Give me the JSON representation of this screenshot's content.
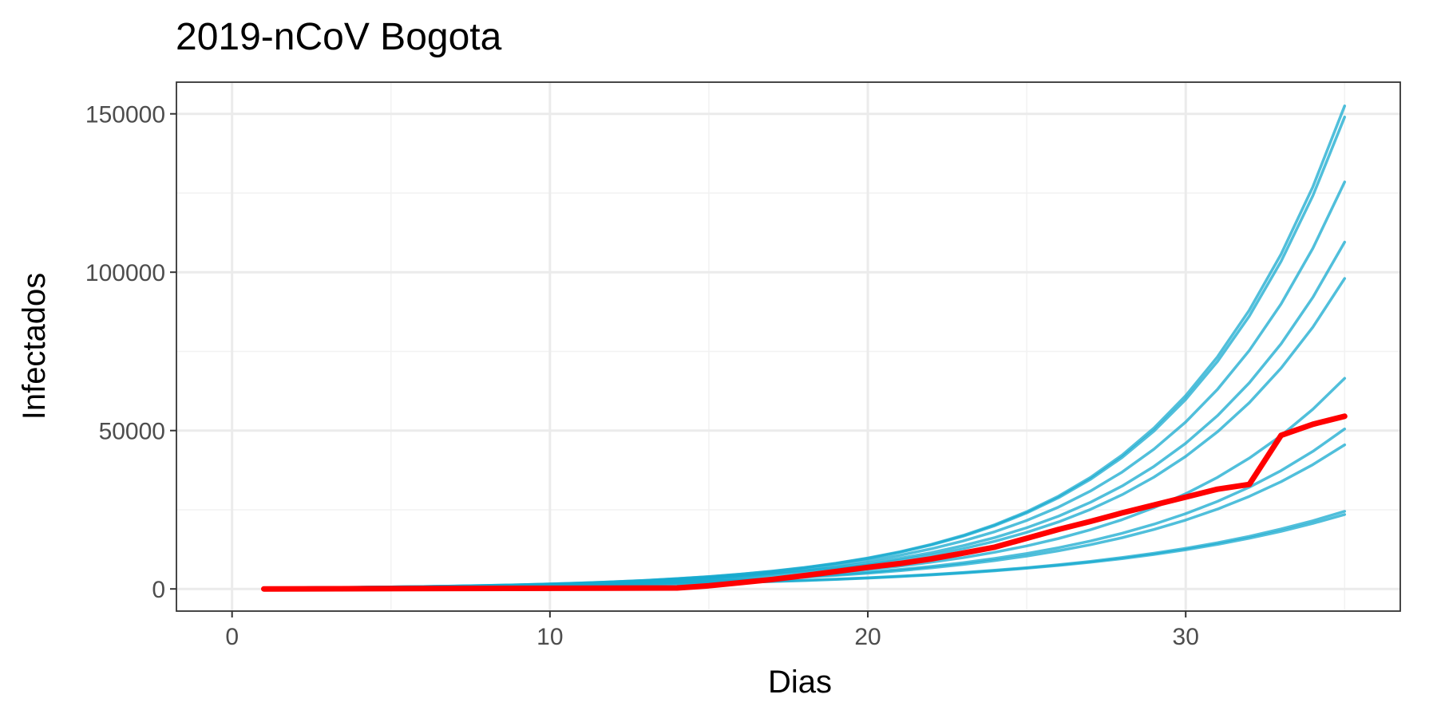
{
  "chart_data": {
    "type": "line",
    "title": "2019-nCoV Bogota",
    "xlabel": "Dias",
    "ylabel": "Infectados",
    "xlim": [
      -1.75,
      36.75
    ],
    "ylim": [
      -7000,
      160000
    ],
    "x_ticks": [
      0,
      10,
      20,
      30
    ],
    "x_tick_labels": [
      "0",
      "10",
      "20",
      "30"
    ],
    "x_minor_ticks": [
      5,
      15,
      25,
      35
    ],
    "y_ticks": [
      0,
      50000,
      100000,
      150000
    ],
    "y_tick_labels": [
      "0",
      "50000",
      "100000",
      "150000"
    ],
    "y_minor_ticks": [
      25000,
      75000,
      125000
    ],
    "grid": true,
    "legend": "none",
    "colors": {
      "simulation": "#16a9cf",
      "observed": "#ff0000"
    },
    "x_start": 1,
    "x_end": 35,
    "series": [
      {
        "role": "simulation",
        "start": 300,
        "end": 152500
      },
      {
        "role": "simulation",
        "start": 300,
        "end": 149000
      },
      {
        "role": "simulation",
        "start": 300,
        "end": 128500
      },
      {
        "role": "simulation",
        "start": 300,
        "end": 109500
      },
      {
        "role": "simulation",
        "start": 300,
        "end": 98000
      },
      {
        "role": "simulation",
        "start": 300,
        "end": 66500
      },
      {
        "role": "simulation",
        "start": 300,
        "end": 50500
      },
      {
        "role": "simulation",
        "start": 300,
        "end": 45500
      },
      {
        "role": "simulation",
        "start": 300,
        "end": 24500
      },
      {
        "role": "simulation",
        "start": 300,
        "end": 23500
      },
      {
        "role": "observed",
        "x": [
          1,
          14,
          15,
          16,
          17,
          18,
          19,
          20,
          21,
          22,
          23,
          24,
          25,
          26,
          27,
          28,
          29,
          30,
          31,
          32,
          33,
          34,
          35
        ],
        "values": [
          0,
          300,
          1000,
          2000,
          3000,
          4200,
          5500,
          6800,
          8000,
          9500,
          11300,
          13200,
          16000,
          18800,
          21300,
          24000,
          26500,
          29000,
          31500,
          33000,
          48500,
          52000,
          54500
        ]
      }
    ]
  }
}
